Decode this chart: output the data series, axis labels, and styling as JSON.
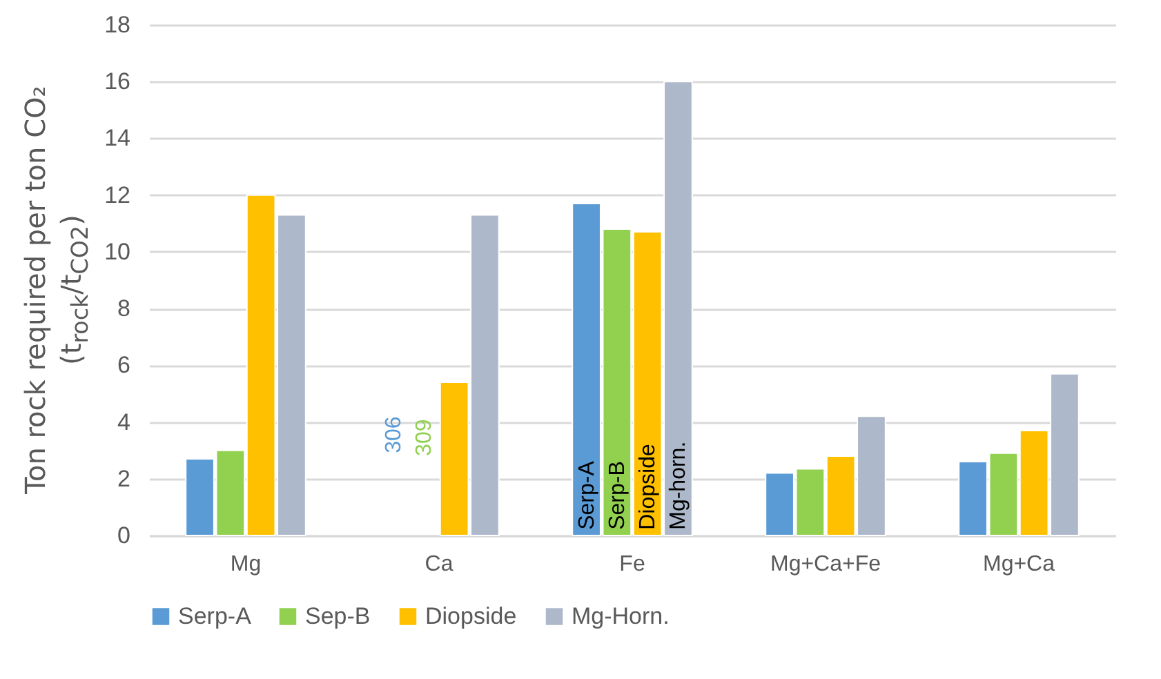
{
  "chart_data": {
    "type": "bar",
    "ylabel": "Ton rock required per ton CO₂\n(t$_{rock}$/t$_{CO2}$)",
    "categories": [
      "Mg",
      "Ca",
      "Fe",
      "Mg+Ca+Fe",
      "Mg+Ca"
    ],
    "series": [
      {
        "name": "Serp-A",
        "color": "#5b9bd5",
        "values": [
          2.7,
          null,
          11.7,
          2.2,
          2.6
        ]
      },
      {
        "name": "Sep-B",
        "color": "#92d050",
        "values": [
          3.0,
          null,
          10.8,
          2.35,
          2.9
        ]
      },
      {
        "name": "Diopside",
        "color": "#ffc000",
        "values": [
          12.0,
          5.4,
          10.7,
          2.8,
          3.7
        ]
      },
      {
        "name": "Mg-Horn.",
        "color": "#adb9ca",
        "values": [
          11.3,
          11.3,
          16.0,
          4.2,
          5.7
        ]
      }
    ],
    "ylim": [
      0,
      18
    ],
    "yticks": [
      0,
      2,
      4,
      6,
      8,
      10,
      12,
      14,
      16,
      18
    ],
    "grid": "y",
    "legend": "bottom",
    "annotations": [
      {
        "text": "306",
        "x": "Ca",
        "y": 2.9
      },
      {
        "text": "309",
        "x": "Ca",
        "y": 2.8
      },
      {
        "text": "Serp-A",
        "x": "Fe",
        "y": 0.2
      },
      {
        "text": "Serp-B",
        "x": "Fe",
        "y": 0.2
      },
      {
        "text": "Diopside",
        "x": "Fe",
        "y": 0.2
      },
      {
        "text": "Mg-horn.",
        "x": "Fe",
        "y": 0.2
      }
    ]
  }
}
